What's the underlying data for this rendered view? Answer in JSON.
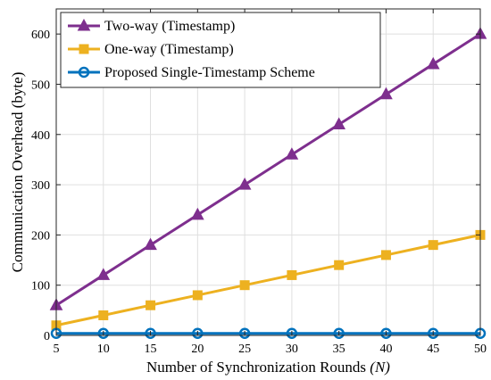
{
  "chart_data": {
    "type": "line",
    "title": "",
    "xlabel": "Number of Synchronization Rounds",
    "xlabel_var": "(N)",
    "ylabel": "Communication Overhead (byte)",
    "x": [
      5,
      10,
      15,
      20,
      25,
      30,
      35,
      40,
      45,
      50
    ],
    "xlim": [
      5,
      50
    ],
    "ylim": [
      0,
      650
    ],
    "xticks": [
      "5",
      "10",
      "15",
      "20",
      "25",
      "30",
      "35",
      "40",
      "45",
      "50"
    ],
    "yticks": [
      "0",
      "100",
      "200",
      "300",
      "400",
      "500",
      "600"
    ],
    "grid": true,
    "legend_position": "top-left",
    "series": [
      {
        "name": "Two-way (Timestamp)",
        "values": [
          60,
          120,
          180,
          240,
          300,
          360,
          420,
          480,
          540,
          600
        ],
        "color": "#7E2F8E",
        "marker": "triangle"
      },
      {
        "name": "One-way (Timestamp)",
        "values": [
          20,
          40,
          60,
          80,
          100,
          120,
          140,
          160,
          180,
          200
        ],
        "color": "#EDB120",
        "marker": "square"
      },
      {
        "name": "Proposed Single-Timestamp Scheme",
        "values": [
          4,
          4,
          4,
          4,
          4,
          4,
          4,
          4,
          4,
          4
        ],
        "color": "#0072BD",
        "marker": "circle"
      }
    ]
  }
}
